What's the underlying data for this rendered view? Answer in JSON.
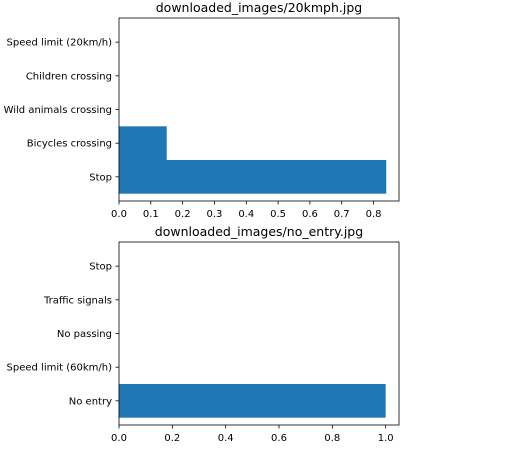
{
  "chart_data": [
    {
      "type": "bar",
      "orientation": "horizontal",
      "title": "downloaded_images/20kmph.jpg",
      "categories": [
        "Stop",
        "Bicycles crossing",
        "Wild animals crossing",
        "Children crossing",
        "Speed limit (20km/h)"
      ],
      "values": [
        0.84,
        0.15,
        0.0,
        0.0,
        0.0
      ],
      "xlim": [
        0,
        0.88
      ],
      "xticks": [
        0,
        0.1,
        0.2,
        0.3,
        0.4,
        0.5,
        0.6,
        0.7,
        0.8
      ],
      "xtick_labels": [
        "0.0",
        "0.1",
        "0.2",
        "0.3",
        "0.4",
        "0.5",
        "0.6",
        "0.7",
        "0.8"
      ],
      "color": "#1f77b4",
      "grid": false
    },
    {
      "type": "bar",
      "orientation": "horizontal",
      "title": "downloaded_images/no_entry.jpg",
      "categories": [
        "No entry",
        "Speed limit (60km/h)",
        "No passing",
        "Traffic signals",
        "Stop"
      ],
      "values": [
        1.0,
        0.0,
        0.0,
        0.0,
        0.0
      ],
      "xlim": [
        0,
        1.05
      ],
      "xticks": [
        0,
        0.2,
        0.4,
        0.6,
        0.8,
        1.0
      ],
      "xtick_labels": [
        "0.0",
        "0.2",
        "0.4",
        "0.6",
        "0.8",
        "1.0"
      ],
      "color": "#1f77b4",
      "grid": false
    }
  ]
}
